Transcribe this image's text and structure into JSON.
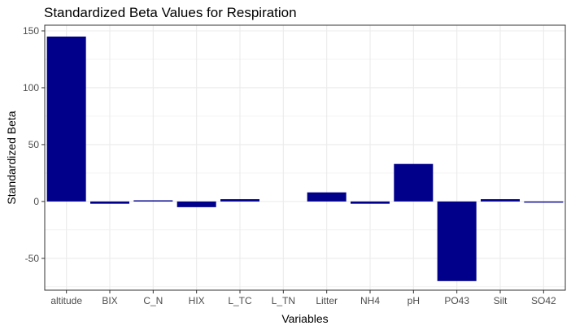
{
  "chart_data": {
    "type": "bar",
    "title": "Standardized Beta Values for Respiration",
    "xlabel": "Variables",
    "ylabel": "Standardized Beta",
    "categories": [
      "altitude",
      "BIX",
      "C_N",
      "HIX",
      "L_TC",
      "L_TN",
      "Litter",
      "NH4",
      "pH",
      "PO43",
      "Silt",
      "SO42"
    ],
    "values": [
      145,
      -2,
      1,
      -5,
      2,
      0,
      8,
      -2,
      33,
      -70,
      2,
      -1
    ],
    "ylim": [
      -78,
      155
    ],
    "yticks": [
      -50,
      0,
      50,
      100,
      150
    ],
    "grid": true,
    "legend": "none",
    "bar_color": "#00008B",
    "grid_color": "#EBEBEB",
    "panel_border_color": "#333333"
  }
}
